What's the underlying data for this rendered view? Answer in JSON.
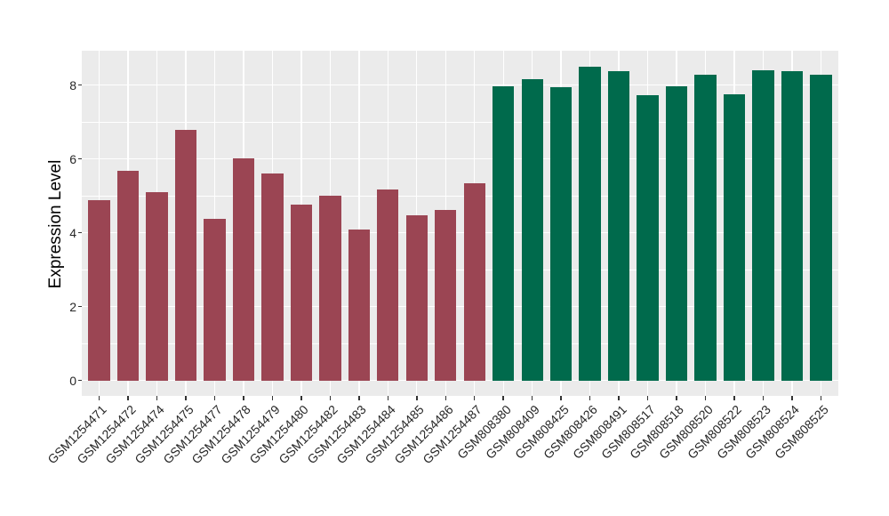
{
  "figure": {
    "background": "#FFFFFF",
    "panel_background": "#EBEBEB",
    "grid_color": "#FFFFFF",
    "axis_text_color": "#262626",
    "axis_title_color": "#000000",
    "tick_mark_color": "#333333"
  },
  "chart_data": {
    "type": "bar",
    "title": "",
    "xlabel": "",
    "ylabel": "Expression Level",
    "ylim": [
      -0.42,
      8.93
    ],
    "y_major_ticks": [
      0,
      2,
      4,
      6,
      8
    ],
    "y_tick_labels": [
      "0",
      "2",
      "4",
      "6",
      "8"
    ],
    "y_minor_gridlines": [
      1,
      3,
      5,
      7
    ],
    "grid": true,
    "legend_position": "none",
    "x_tick_label_angle_deg": 45,
    "series": [
      {
        "color": "#9B4553",
        "labels": [
          "GSM1254471",
          "GSM1254472",
          "GSM1254474",
          "GSM1254475",
          "GSM1254477",
          "GSM1254478",
          "GSM1254479",
          "GSM1254480",
          "GSM1254482",
          "GSM1254483",
          "GSM1254484",
          "GSM1254485",
          "GSM1254486",
          "GSM1254487"
        ],
        "values": [
          4.89,
          5.68,
          5.1,
          6.78,
          4.37,
          6.01,
          5.61,
          4.76,
          5.01,
          4.09,
          5.16,
          4.48,
          4.61,
          5.33
        ]
      },
      {
        "color": "#006A4C",
        "labels": [
          "GSM808380",
          "GSM808409",
          "GSM808425",
          "GSM808426",
          "GSM808491",
          "GSM808517",
          "GSM808518",
          "GSM808520",
          "GSM808522",
          "GSM808523",
          "GSM808524",
          "GSM808525"
        ],
        "values": [
          7.96,
          8.17,
          7.94,
          8.49,
          8.38,
          7.73,
          7.97,
          8.28,
          7.74,
          8.39,
          8.37,
          8.29
        ]
      }
    ]
  }
}
